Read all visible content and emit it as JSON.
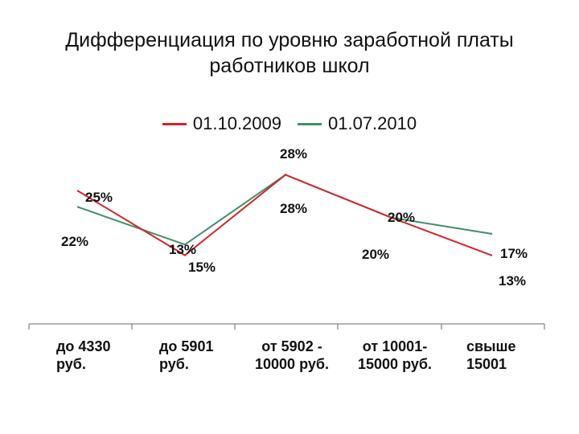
{
  "chart_data": {
    "type": "line",
    "title_lines": [
      "Дифференциация по уровню заработной платы",
      "работников школ"
    ],
    "categories": [
      [
        "до 4330",
        "руб."
      ],
      [
        "до 5901",
        "руб."
      ],
      [
        "от 5902 -",
        "10000 руб."
      ],
      [
        "от 10001-",
        "15000 руб."
      ],
      [
        "свыше",
        "15001"
      ]
    ],
    "ylim": [
      0,
      30
    ],
    "legend_position": "top",
    "series": [
      {
        "name": "01.10.2009",
        "color": "#d0262a",
        "values": [
          25,
          13,
          28,
          20,
          13
        ],
        "labels": [
          "25%",
          "13%",
          "28%",
          "20%",
          "13%"
        ]
      },
      {
        "name": "01.07.2010",
        "color": "#3f8f6a",
        "values": [
          22,
          15,
          28,
          20,
          17
        ],
        "labels": [
          "22%",
          "15%",
          "28%",
          "20%",
          "17%"
        ]
      }
    ]
  }
}
